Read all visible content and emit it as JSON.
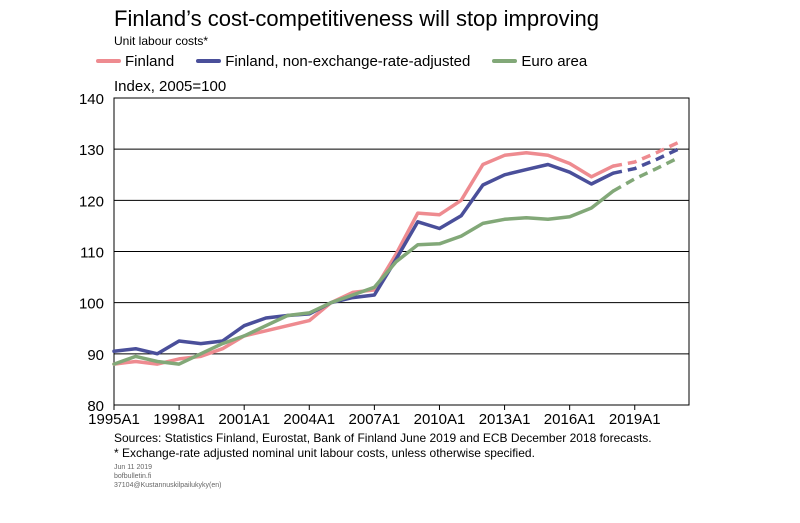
{
  "chart_data": {
    "type": "line",
    "title": "Finland’s cost-competitiveness will stop improving",
    "subtitle": "Unit labour costs*",
    "ylabel": "Index, 2005=100",
    "ylim": [
      80,
      140
    ],
    "yticks": [
      80,
      90,
      100,
      110,
      120,
      130,
      140
    ],
    "xlim": [
      1995,
      2021.5
    ],
    "xticks": [
      {
        "label": "1995A1",
        "x": 1995
      },
      {
        "label": "1998A1",
        "x": 1998
      },
      {
        "label": "2001A1",
        "x": 2001
      },
      {
        "label": "2004A1",
        "x": 2004
      },
      {
        "label": "2007A1",
        "x": 2007
      },
      {
        "label": "2010A1",
        "x": 2010
      },
      {
        "label": "2013A1",
        "x": 2013
      },
      {
        "label": "2016A1",
        "x": 2016
      },
      {
        "label": "2019A1",
        "x": 2019
      }
    ],
    "grid": true,
    "legend_position": "top",
    "series": [
      {
        "name": "Finland",
        "color": "#ee8b90",
        "actual": [
          [
            1995,
            88.0
          ],
          [
            1996,
            88.5
          ],
          [
            1997,
            88.0
          ],
          [
            1998,
            89.0
          ],
          [
            1999,
            89.5
          ],
          [
            2000,
            91.0
          ],
          [
            2001,
            93.5
          ],
          [
            2002,
            94.5
          ],
          [
            2003,
            95.5
          ],
          [
            2004,
            96.5
          ],
          [
            2005,
            100.0
          ],
          [
            2006,
            102.0
          ],
          [
            2007,
            102.5
          ],
          [
            2008,
            109.5
          ],
          [
            2009,
            117.5
          ],
          [
            2010,
            117.2
          ],
          [
            2011,
            120.0
          ],
          [
            2012,
            127.0
          ],
          [
            2013,
            128.8
          ],
          [
            2014,
            129.3
          ],
          [
            2015,
            128.8
          ],
          [
            2016,
            127.2
          ],
          [
            2017,
            124.6
          ],
          [
            2018,
            126.7
          ]
        ],
        "forecast": [
          [
            2018,
            126.7
          ],
          [
            2019,
            127.5
          ],
          [
            2020,
            129.3
          ],
          [
            2021,
            131.3
          ]
        ]
      },
      {
        "name": "Finland, non-exchange-rate-adjusted",
        "color": "#4a4f9a",
        "actual": [
          [
            1995,
            90.5
          ],
          [
            1996,
            91.0
          ],
          [
            1997,
            90.0
          ],
          [
            1998,
            92.5
          ],
          [
            1999,
            92.0
          ],
          [
            2000,
            92.5
          ],
          [
            2001,
            95.5
          ],
          [
            2002,
            97.0
          ],
          [
            2003,
            97.5
          ],
          [
            2004,
            97.8
          ],
          [
            2005,
            100.0
          ],
          [
            2006,
            101.0
          ],
          [
            2007,
            101.5
          ],
          [
            2008,
            108.5
          ],
          [
            2009,
            115.8
          ],
          [
            2010,
            114.5
          ],
          [
            2011,
            117.0
          ],
          [
            2012,
            123.0
          ],
          [
            2013,
            125.0
          ],
          [
            2014,
            126.0
          ],
          [
            2015,
            127.0
          ],
          [
            2016,
            125.5
          ],
          [
            2017,
            123.2
          ],
          [
            2018,
            125.3
          ]
        ],
        "forecast": [
          [
            2018,
            125.3
          ],
          [
            2019,
            126.2
          ],
          [
            2020,
            128.0
          ],
          [
            2021,
            130.0
          ]
        ]
      },
      {
        "name": "Euro area",
        "color": "#82a878",
        "actual": [
          [
            1995,
            88.0
          ],
          [
            1996,
            89.5
          ],
          [
            1997,
            88.5
          ],
          [
            1998,
            88.0
          ],
          [
            1999,
            90.0
          ],
          [
            2000,
            92.0
          ],
          [
            2001,
            93.5
          ],
          [
            2002,
            95.5
          ],
          [
            2003,
            97.5
          ],
          [
            2004,
            98.0
          ],
          [
            2005,
            100.0
          ],
          [
            2006,
            101.5
          ],
          [
            2007,
            103.0
          ],
          [
            2008,
            108.0
          ],
          [
            2009,
            111.3
          ],
          [
            2010,
            111.5
          ],
          [
            2011,
            113.0
          ],
          [
            2012,
            115.5
          ],
          [
            2013,
            116.3
          ],
          [
            2014,
            116.6
          ],
          [
            2015,
            116.3
          ],
          [
            2016,
            116.8
          ],
          [
            2017,
            118.5
          ],
          [
            2018,
            121.8
          ]
        ],
        "forecast": [
          [
            2018,
            121.8
          ],
          [
            2019,
            124.2
          ],
          [
            2020,
            126.2
          ],
          [
            2021,
            128.3
          ]
        ]
      }
    ],
    "source": "Sources: Statistics Finland,  Eurostat,  Bank  of Finland  June 2019  and ECB  December 2018 forecasts.",
    "footnote": "* Exchange-rate adjusted nominal unit labour costs, unless otherwise specified."
  },
  "meta": {
    "date": "Jun 11 2019",
    "site": "bofbulletin.fi",
    "code": "37104@Kustannuskilpailukyky(en)"
  }
}
